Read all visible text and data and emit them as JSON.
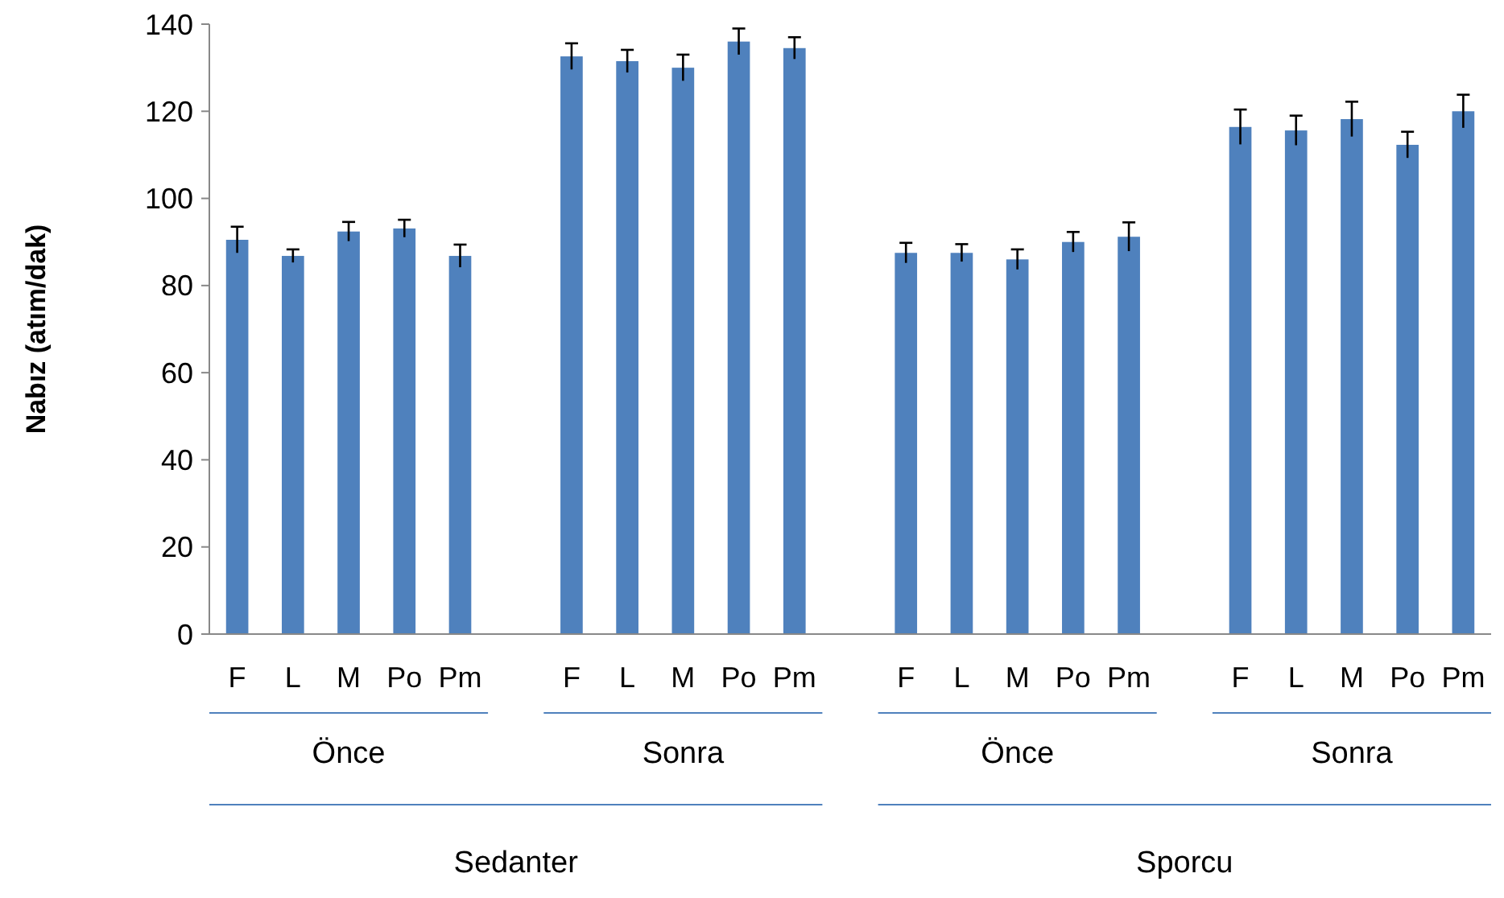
{
  "chart_data": {
    "type": "bar",
    "ylabel": "Nabız (atım/dak)",
    "categories": [
      "F",
      "L",
      "M",
      "Po",
      "Pm",
      null,
      "F",
      "L",
      "M",
      "Po",
      "Pm",
      null,
      "F",
      "L",
      "M",
      "Po",
      "Pm",
      null,
      "F",
      "L",
      "M",
      "Po",
      "Pm"
    ],
    "values": [
      90.5,
      86.8,
      92.4,
      93.1,
      86.8,
      null,
      132.6,
      131.5,
      130,
      136,
      134.5,
      null,
      87.5,
      87.5,
      86,
      90,
      91.2,
      null,
      116.4,
      115.6,
      118.2,
      112.3,
      120
    ],
    "errors": [
      3,
      1.5,
      2.2,
      2,
      2.6,
      null,
      3,
      2.6,
      3,
      3,
      2.5,
      null,
      2.3,
      2,
      2.3,
      2.3,
      3.3,
      null,
      4,
      3.4,
      4,
      3,
      3.8
    ],
    "color": "#4f81bd",
    "ylim": [
      0,
      140
    ],
    "yticks": [
      0,
      20,
      40,
      60,
      80,
      100,
      120,
      140
    ],
    "grid": false,
    "annotations": [
      "Önce",
      "Sonra",
      "Önce",
      "Sonra",
      "Sedanter",
      "Sporcu"
    ]
  }
}
